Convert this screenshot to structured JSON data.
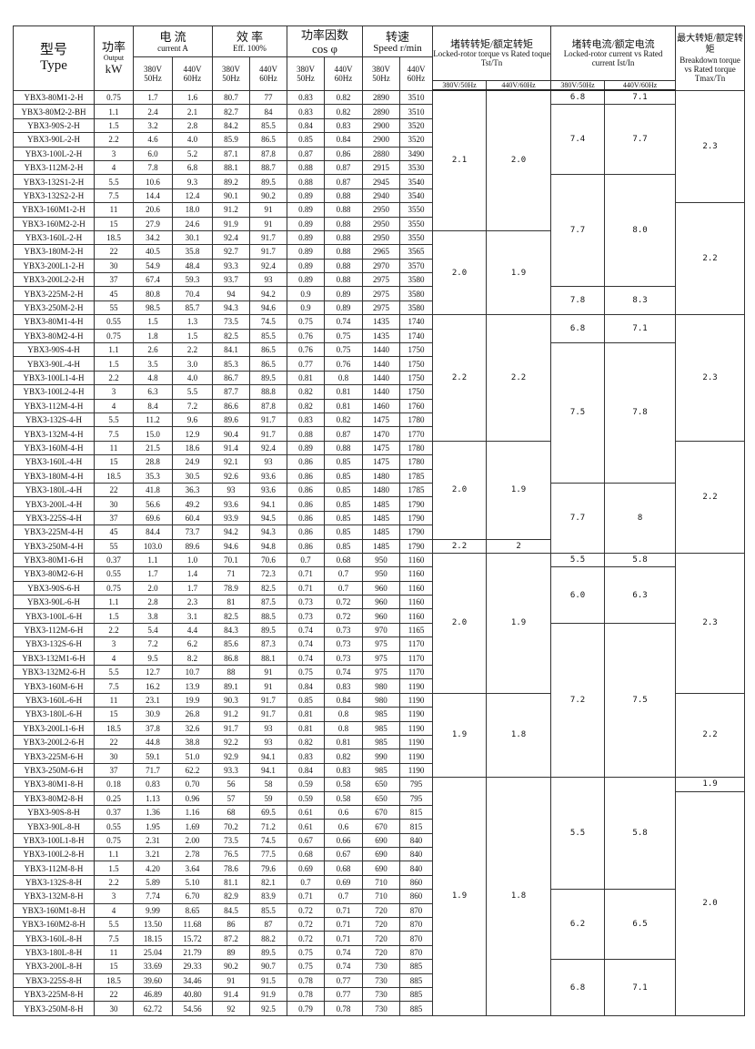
{
  "header": {
    "type_cn": "型号",
    "type_en": "Type",
    "power_cn": "功率",
    "power_en": "Output",
    "power_unit": "kW",
    "current_cn": "电 流",
    "current_en": "current  A",
    "eff_cn": "效 率",
    "eff_en": "Eff. 100%",
    "pf_cn": "功率因数",
    "pf_en": "cos φ",
    "speed_cn": "转速",
    "speed_en": "Speed r/min",
    "torque_cn": "堵转转矩/额定转矩",
    "torque_en": "Locked-rotor torque vs Rated toque   Tst/Tn",
    "lrc_cn": "堵转电流/额定电流",
    "lrc_en": "Locked-rotor current vs Rated current Ist/In",
    "tmax_cn": "最大转矩/额定转矩",
    "tmax_en": "Breakdown torque vs Rated torque Tmax/Tn",
    "v380": "380V",
    "hz50": "50Hz",
    "v440": "440V",
    "hz60": "60Hz",
    "sub380": "380V/50Hz",
    "sub440": "440V/60Hz"
  },
  "rows": [
    [
      "YBX3-80M1-2-H",
      "0.75",
      "1.7",
      "1.6",
      "80.7",
      "77",
      "0.83",
      "0.82",
      "2890",
      "3510"
    ],
    [
      "YBX3-80M2-2-BH",
      "1.1",
      "2.4",
      "2.1",
      "82.7",
      "84",
      "0.83",
      "0.82",
      "2890",
      "3510"
    ],
    [
      "YBX3-90S-2-H",
      "1.5",
      "3.2",
      "2.8",
      "84.2",
      "85.5",
      "0.84",
      "0.83",
      "2900",
      "3520"
    ],
    [
      "YBX3-90L-2-H",
      "2.2",
      "4.6",
      "4.0",
      "85.9",
      "86.5",
      "0.85",
      "0.84",
      "2900",
      "3520"
    ],
    [
      "YBX3-100L-2-H",
      "3",
      "6.0",
      "5.2",
      "87.1",
      "87.8",
      "0.87",
      "0.86",
      "2880",
      "3490"
    ],
    [
      "YBX3-112M-2-H",
      "4",
      "7.8",
      "6.8",
      "88.1",
      "88.7",
      "0.88",
      "0.87",
      "2915",
      "3530"
    ],
    [
      "YBX3-132S1-2-H",
      "5.5",
      "10.6",
      "9.3",
      "89.2",
      "89.5",
      "0.88",
      "0.87",
      "2945",
      "3540"
    ],
    [
      "YBX3-132S2-2-H",
      "7.5",
      "14.4",
      "12.4",
      "90.1",
      "90.2",
      "0.89",
      "0.88",
      "2940",
      "3540"
    ],
    [
      "YBX3-160M1-2-H",
      "11",
      "20.6",
      "18.0",
      "91.2",
      "91",
      "0.89",
      "0.88",
      "2950",
      "3550"
    ],
    [
      "YBX3-160M2-2-H",
      "15",
      "27.9",
      "24.6",
      "91.9",
      "91",
      "0.89",
      "0.88",
      "2950",
      "3550"
    ],
    [
      "YBX3-160L-2-H",
      "18.5",
      "34.2",
      "30.1",
      "92.4",
      "91.7",
      "0.89",
      "0.88",
      "2950",
      "3550"
    ],
    [
      "YBX3-180M-2-H",
      "22",
      "40.5",
      "35.8",
      "92.7",
      "91.7",
      "0.89",
      "0.88",
      "2965",
      "3565"
    ],
    [
      "YBX3-200L1-2-H",
      "30",
      "54.9",
      "48.4",
      "93.3",
      "92.4",
      "0.89",
      "0.88",
      "2970",
      "3570"
    ],
    [
      "YBX3-200L2-2-H",
      "37",
      "67.4",
      "59.3",
      "93.7",
      "93",
      "0.89",
      "0.88",
      "2975",
      "3580"
    ],
    [
      "YBX3-225M-2-H",
      "45",
      "80.8",
      "70.4",
      "94",
      "94.2",
      "0.9",
      "0.89",
      "2975",
      "3580"
    ],
    [
      "YBX3-250M-2-H",
      "55",
      "98.5",
      "85.7",
      "94.3",
      "94.6",
      "0.9",
      "0.89",
      "2975",
      "3580"
    ],
    [
      "YBX3-80M1-4-H",
      "0.55",
      "1.5",
      "1.3",
      "73.5",
      "74.5",
      "0.75",
      "0.74",
      "1435",
      "1740"
    ],
    [
      "YBX3-80M2-4-H",
      "0.75",
      "1.8",
      "1.5",
      "82.5",
      "85.5",
      "0.76",
      "0.75",
      "1435",
      "1740"
    ],
    [
      "YBX3-90S-4-H",
      "1.1",
      "2.6",
      "2.2",
      "84.1",
      "86.5",
      "0.76",
      "0.75",
      "1440",
      "1750"
    ],
    [
      "YBX3-90L-4-H",
      "1.5",
      "3.5",
      "3.0",
      "85.3",
      "86.5",
      "0.77",
      "0.76",
      "1440",
      "1750"
    ],
    [
      "YBX3-100L1-4-H",
      "2.2",
      "4.8",
      "4.0",
      "86.7",
      "89.5",
      "0.81",
      "0.8",
      "1440",
      "1750"
    ],
    [
      "YBX3-100L2-4-H",
      "3",
      "6.3",
      "5.5",
      "87.7",
      "88.8",
      "0.82",
      "0.81",
      "1440",
      "1750"
    ],
    [
      "YBX3-112M-4-H",
      "4",
      "8.4",
      "7.2",
      "86.6",
      "87.8",
      "0.82",
      "0.81",
      "1460",
      "1760"
    ],
    [
      "YBX3-132S-4-H",
      "5.5",
      "11.2",
      "9.6",
      "89.6",
      "91.7",
      "0.83",
      "0.82",
      "1475",
      "1780"
    ],
    [
      "YBX3-132M-4-H",
      "7.5",
      "15.0",
      "12.9",
      "90.4",
      "91.7",
      "0.88",
      "0.87",
      "1470",
      "1770"
    ],
    [
      "YBX3-160M-4-H",
      "11",
      "21.5",
      "18.6",
      "91.4",
      "92.4",
      "0.89",
      "0.88",
      "1475",
      "1780"
    ],
    [
      "YBX3-160L-4-H",
      "15",
      "28.8",
      "24.9",
      "92.1",
      "93",
      "0.86",
      "0.85",
      "1475",
      "1780"
    ],
    [
      "YBX3-180M-4-H",
      "18.5",
      "35.3",
      "30.5",
      "92.6",
      "93.6",
      "0.86",
      "0.85",
      "1480",
      "1785"
    ],
    [
      "YBX3-180L-4-H",
      "22",
      "41.8",
      "36.3",
      "93",
      "93.6",
      "0.86",
      "0.85",
      "1480",
      "1785"
    ],
    [
      "YBX3-200L-4-H",
      "30",
      "56.6",
      "49.2",
      "93.6",
      "94.1",
      "0.86",
      "0.85",
      "1485",
      "1790"
    ],
    [
      "YBX3-225S-4-H",
      "37",
      "69.6",
      "60.4",
      "93.9",
      "94.5",
      "0.86",
      "0.85",
      "1485",
      "1790"
    ],
    [
      "YBX3-225M-4-H",
      "45",
      "84.4",
      "73.7",
      "94.2",
      "94.3",
      "0.86",
      "0.85",
      "1485",
      "1790"
    ],
    [
      "YBX3-250M-4-H",
      "55",
      "103.0",
      "89.6",
      "94.6",
      "94.8",
      "0.86",
      "0.85",
      "1485",
      "1790"
    ],
    [
      "YBX3-80M1-6-H",
      "0.37",
      "1.1",
      "1.0",
      "70.1",
      "70.6",
      "0.7",
      "0.68",
      "950",
      "1160"
    ],
    [
      "YBX3-80M2-6-H",
      "0.55",
      "1.7",
      "1.4",
      "71",
      "72.3",
      "0.71",
      "0.7",
      "950",
      "1160"
    ],
    [
      "YBX3-90S-6-H",
      "0.75",
      "2.0",
      "1.7",
      "78.9",
      "82.5",
      "0.71",
      "0.7",
      "960",
      "1160"
    ],
    [
      "YBX3-90L-6-H",
      "1.1",
      "2.8",
      "2.3",
      "81",
      "87.5",
      "0.73",
      "0.72",
      "960",
      "1160"
    ],
    [
      "YBX3-100L-6-H",
      "1.5",
      "3.8",
      "3.1",
      "82.5",
      "88.5",
      "0.73",
      "0.72",
      "960",
      "1160"
    ],
    [
      "YBX3-112M-6-H",
      "2.2",
      "5.4",
      "4.4",
      "84.3",
      "89.5",
      "0.74",
      "0.73",
      "970",
      "1165"
    ],
    [
      "YBX3-132S-6-H",
      "3",
      "7.2",
      "6.2",
      "85.6",
      "87.3",
      "0.74",
      "0.73",
      "975",
      "1170"
    ],
    [
      "YBX3-132M1-6-H",
      "4",
      "9.5",
      "8.2",
      "86.8",
      "88.1",
      "0.74",
      "0.73",
      "975",
      "1170"
    ],
    [
      "YBX3-132M2-6-H",
      "5.5",
      "12.7",
      "10.7",
      "88",
      "91",
      "0.75",
      "0.74",
      "975",
      "1170"
    ],
    [
      "YBX3-160M-6-H",
      "7.5",
      "16.2",
      "13.9",
      "89.1",
      "91",
      "0.84",
      "0.83",
      "980",
      "1190"
    ],
    [
      "YBX3-160L-6-H",
      "11",
      "23.1",
      "19.9",
      "90.3",
      "91.7",
      "0.85",
      "0.84",
      "980",
      "1190"
    ],
    [
      "YBX3-180L-6-H",
      "15",
      "30.9",
      "26.8",
      "91.2",
      "91.7",
      "0.81",
      "0.8",
      "985",
      "1190"
    ],
    [
      "YBX3-200L1-6-H",
      "18.5",
      "37.8",
      "32.6",
      "91.7",
      "93",
      "0.81",
      "0.8",
      "985",
      "1190"
    ],
    [
      "YBX3-200L2-6-H",
      "22",
      "44.8",
      "38.8",
      "92.2",
      "93",
      "0.82",
      "0.81",
      "985",
      "1190"
    ],
    [
      "YBX3-225M-6-H",
      "30",
      "59.1",
      "51.0",
      "92.9",
      "94.1",
      "0.83",
      "0.82",
      "990",
      "1190"
    ],
    [
      "YBX3-250M-6-H",
      "37",
      "71.7",
      "62.2",
      "93.3",
      "94.1",
      "0.84",
      "0.83",
      "985",
      "1190"
    ],
    [
      "YBX3-80M1-8-H",
      "0.18",
      "0.83",
      "0.70",
      "56",
      "58",
      "0.59",
      "0.58",
      "650",
      "795"
    ],
    [
      "YBX3-80M2-8-H",
      "0.25",
      "1.13",
      "0.96",
      "57",
      "59",
      "0.59",
      "0.58",
      "650",
      "795"
    ],
    [
      "YBX3-90S-8-H",
      "0.37",
      "1.36",
      "1.16",
      "68",
      "69.5",
      "0.61",
      "0.6",
      "670",
      "815"
    ],
    [
      "YBX3-90L-8-H",
      "0.55",
      "1.95",
      "1.69",
      "70.2",
      "71.2",
      "0.61",
      "0.6",
      "670",
      "815"
    ],
    [
      "YBX3-100L1-8-H",
      "0.75",
      "2.31",
      "2.00",
      "73.5",
      "74.5",
      "0.67",
      "0.66",
      "690",
      "840"
    ],
    [
      "YBX3-100L2-8-H",
      "1.1",
      "3.21",
      "2.78",
      "76.5",
      "77.5",
      "0.68",
      "0.67",
      "690",
      "840"
    ],
    [
      "YBX3-112M-8-H",
      "1.5",
      "4.20",
      "3.64",
      "78.6",
      "79.6",
      "0.69",
      "0.68",
      "690",
      "840"
    ],
    [
      "YBX3-132S-8-H",
      "2.2",
      "5.89",
      "5.10",
      "81.1",
      "82.1",
      "0.7",
      "0.69",
      "710",
      "860"
    ],
    [
      "YBX3-132M-8-H",
      "3",
      "7.74",
      "6.70",
      "82.9",
      "83.9",
      "0.71",
      "0.7",
      "710",
      "860"
    ],
    [
      "YBX3-160M1-8-H",
      "4",
      "9.99",
      "8.65",
      "84.5",
      "85.5",
      "0.72",
      "0.71",
      "720",
      "870"
    ],
    [
      "YBX3-160M2-8-H",
      "5.5",
      "13.50",
      "11.68",
      "86",
      "87",
      "0.72",
      "0.71",
      "720",
      "870"
    ],
    [
      "YBX3-160L-8-H",
      "7.5",
      "18.15",
      "15.72",
      "87.2",
      "88.2",
      "0.72",
      "0.71",
      "720",
      "870"
    ],
    [
      "YBX3-180L-8-H",
      "11",
      "25.04",
      "21.79",
      "89",
      "89.5",
      "0.75",
      "0.74",
      "720",
      "870"
    ],
    [
      "YBX3-200L-8-H",
      "15",
      "33.69",
      "29.33",
      "90.2",
      "90.7",
      "0.75",
      "0.74",
      "730",
      "885"
    ],
    [
      "YBX3-225S-8-H",
      "18.5",
      "39.60",
      "34.46",
      "91",
      "91.5",
      "0.78",
      "0.77",
      "730",
      "885"
    ],
    [
      "YBX3-225M-8-H",
      "22",
      "46.89",
      "40.80",
      "91.4",
      "91.9",
      "0.78",
      "0.77",
      "730",
      "885"
    ],
    [
      "YBX3-250M-8-H",
      "30",
      "62.72",
      "54.56",
      "92",
      "92.5",
      "0.79",
      "0.78",
      "730",
      "885"
    ]
  ],
  "merged": {
    "torque_380": [
      {
        "v": "2.1",
        "span": 10
      },
      {
        "v": "2.0",
        "span": 6
      },
      {
        "v": "2.2",
        "span": 9
      },
      {
        "v": "2.0",
        "span": 7
      },
      {
        "v": "2.2",
        "span": 1
      },
      {
        "v": "2.0",
        "span": 10
      },
      {
        "v": "1.9",
        "span": 6
      },
      {
        "v": "1.9",
        "span": 17
      }
    ],
    "torque_440": [
      {
        "v": "2.0",
        "span": 10
      },
      {
        "v": "1.9",
        "span": 6
      },
      {
        "v": "2.2",
        "span": 9
      },
      {
        "v": "1.9",
        "span": 7
      },
      {
        "v": "2",
        "span": 1
      },
      {
        "v": "1.9",
        "span": 10
      },
      {
        "v": "1.8",
        "span": 6
      },
      {
        "v": "1.8",
        "span": 17
      }
    ],
    "current_380": [
      {
        "v": "6.8",
        "span": 1
      },
      {
        "v": "7.4",
        "span": 5
      },
      {
        "v": "7.7",
        "span": 8
      },
      {
        "v": "7.8",
        "span": 2
      },
      {
        "v": "6.8",
        "span": 2
      },
      {
        "v": "7.5",
        "span": 10
      },
      {
        "v": "7.7",
        "span": 5
      },
      {
        "v": "5.5",
        "span": 1
      },
      {
        "v": "6.0",
        "span": 4
      },
      {
        "v": "7.2",
        "span": 11
      },
      {
        "v": "5.5",
        "span": 8
      },
      {
        "v": "6.2",
        "span": 5
      },
      {
        "v": "6.8",
        "span": 4
      }
    ],
    "current_440": [
      {
        "v": "7.1",
        "span": 1
      },
      {
        "v": "7.7",
        "span": 5
      },
      {
        "v": "8.0",
        "span": 8
      },
      {
        "v": "8.3",
        "span": 2
      },
      {
        "v": "7.1",
        "span": 2
      },
      {
        "v": "7.8",
        "span": 10
      },
      {
        "v": "8",
        "span": 5
      },
      {
        "v": "5.8",
        "span": 1
      },
      {
        "v": "6.3",
        "span": 4
      },
      {
        "v": "7.5",
        "span": 11
      },
      {
        "v": "5.8",
        "span": 8
      },
      {
        "v": "6.5",
        "span": 5
      },
      {
        "v": "7.1",
        "span": 4
      }
    ],
    "tmax": [
      {
        "v": "2.3",
        "span": 8
      },
      {
        "v": "2.2",
        "span": 8
      },
      {
        "v": "2.3",
        "span": 9
      },
      {
        "v": "2.2",
        "span": 8
      },
      {
        "v": "2.3",
        "span": 10
      },
      {
        "v": "2.2",
        "span": 6
      },
      {
        "v": "1.9",
        "span": 1
      },
      {
        "v": "2.0",
        "span": 16
      }
    ]
  }
}
